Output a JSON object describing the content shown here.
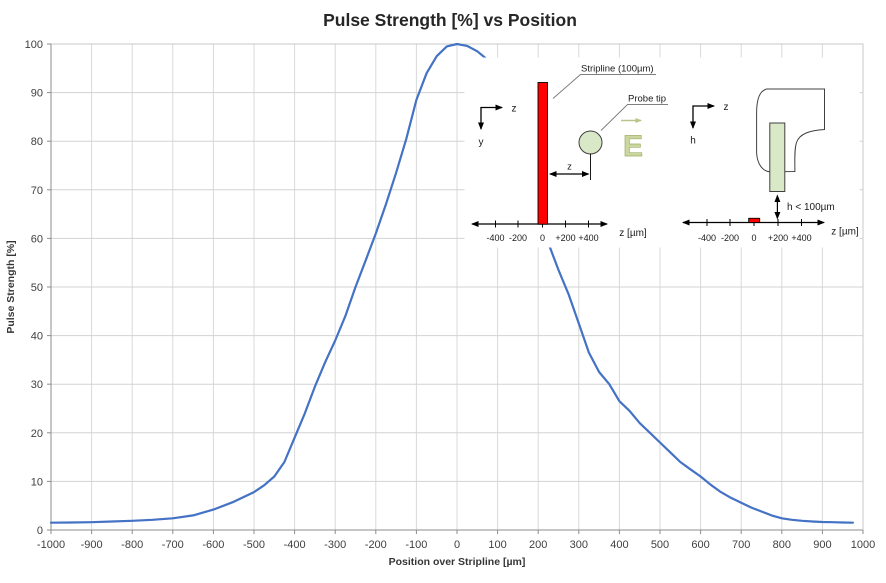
{
  "title": "Pulse Strength [%] vs Position",
  "chart_data": {
    "type": "line",
    "title": "Pulse Strength [%] vs Position",
    "xlabel": "Position over Stripline [µm]",
    "ylabel": "Pulse Strength [%]",
    "xlim": [
      -1000,
      1000
    ],
    "ylim": [
      0,
      100
    ],
    "grid": "on",
    "legend": "none",
    "x_ticks": [
      -1000,
      -900,
      -800,
      -700,
      -600,
      -500,
      -400,
      -300,
      -200,
      -100,
      0,
      100,
      200,
      300,
      400,
      500,
      600,
      700,
      800,
      900,
      1000
    ],
    "y_ticks": [
      0,
      10,
      20,
      30,
      40,
      50,
      60,
      70,
      80,
      90,
      100
    ],
    "line_color": "#4472C4",
    "series": [
      {
        "name": "Pulse Strength",
        "points": [
          [
            -1000,
            1.5
          ],
          [
            -950,
            1.55
          ],
          [
            -900,
            1.6
          ],
          [
            -850,
            1.75
          ],
          [
            -800,
            1.9
          ],
          [
            -750,
            2.1
          ],
          [
            -700,
            2.4
          ],
          [
            -650,
            3.0
          ],
          [
            -600,
            4.2
          ],
          [
            -550,
            5.8
          ],
          [
            -500,
            7.8
          ],
          [
            -475,
            9.2
          ],
          [
            -450,
            11.0
          ],
          [
            -425,
            14.0
          ],
          [
            -400,
            19.0
          ],
          [
            -375,
            24.0
          ],
          [
            -350,
            29.5
          ],
          [
            -325,
            34.5
          ],
          [
            -300,
            39.0
          ],
          [
            -275,
            44.0
          ],
          [
            -250,
            50.0
          ],
          [
            -225,
            55.5
          ],
          [
            -200,
            61.0
          ],
          [
            -175,
            67.0
          ],
          [
            -150,
            73.5
          ],
          [
            -125,
            80.5
          ],
          [
            -100,
            88.5
          ],
          [
            -75,
            94.0
          ],
          [
            -50,
            97.5
          ],
          [
            -25,
            99.5
          ],
          [
            0,
            100.0
          ],
          [
            25,
            99.6
          ],
          [
            50,
            98.5
          ],
          [
            75,
            96.8
          ],
          [
            100,
            93.5
          ],
          [
            125,
            87.5
          ],
          [
            150,
            79.5
          ],
          [
            175,
            71.5
          ],
          [
            200,
            64.5
          ],
          [
            225,
            59.0
          ],
          [
            250,
            53.5
          ],
          [
            275,
            48.5
          ],
          [
            300,
            42.5
          ],
          [
            325,
            36.5
          ],
          [
            350,
            32.5
          ],
          [
            375,
            30.0
          ],
          [
            400,
            26.5
          ],
          [
            425,
            24.5
          ],
          [
            450,
            22.0
          ],
          [
            475,
            20.0
          ],
          [
            500,
            18.0
          ],
          [
            525,
            16.0
          ],
          [
            550,
            14.0
          ],
          [
            575,
            12.5
          ],
          [
            600,
            11.0
          ],
          [
            625,
            9.3
          ],
          [
            650,
            7.8
          ],
          [
            675,
            6.6
          ],
          [
            700,
            5.6
          ],
          [
            725,
            4.6
          ],
          [
            750,
            3.8
          ],
          [
            775,
            3.0
          ],
          [
            800,
            2.4
          ],
          [
            825,
            2.1
          ],
          [
            850,
            1.9
          ],
          [
            875,
            1.75
          ],
          [
            900,
            1.65
          ],
          [
            925,
            1.6
          ],
          [
            950,
            1.55
          ],
          [
            975,
            1.5
          ]
        ]
      }
    ]
  },
  "inset": {
    "left_diagram": {
      "stripline_label": "Stripline (100µm)",
      "probe_tip_label": "Probe tip",
      "e_field_symbol": "E",
      "z_dimension_label": "z",
      "axis_unit_label": "z [µm]",
      "axis_ticks": [
        "-400",
        "-200",
        "0",
        "+200",
        "+400"
      ],
      "coord_horizontal_label": "z",
      "coord_vertical_label": "y"
    },
    "right_diagram": {
      "height_label": "h < 100µm",
      "axis_unit_label": "z [µm]",
      "axis_ticks": [
        "-400",
        "-200",
        "0",
        "+200",
        "+400"
      ],
      "coord_horizontal_label": "z",
      "coord_vertical_label": "h"
    },
    "colors": {
      "stripline_red": "#FE0000",
      "probe_green": "#D9E8C6",
      "e_field_olive": "#CBD79E",
      "leader_gray": "#7F7F7F"
    }
  }
}
